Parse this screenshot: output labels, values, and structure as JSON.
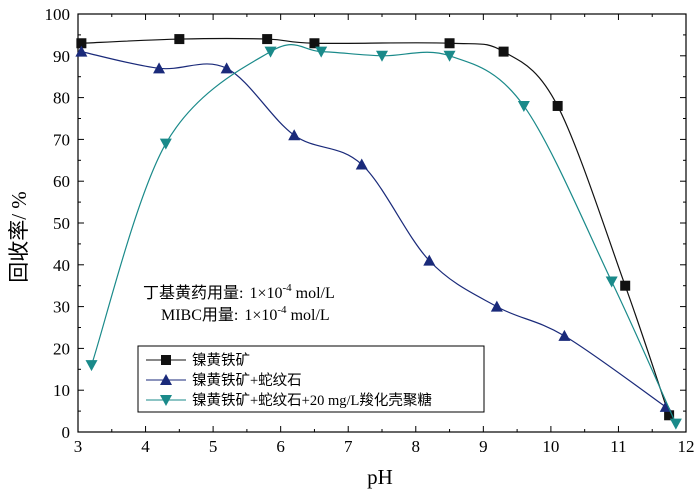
{
  "chart_data": {
    "type": "line",
    "xlabel": "pH",
    "ylabel": "回收率/ %",
    "xlim": [
      3,
      12
    ],
    "ylim": [
      0,
      100
    ],
    "x_ticks": [
      3,
      4,
      5,
      6,
      7,
      8,
      9,
      10,
      11,
      12
    ],
    "y_ticks": [
      0,
      10,
      20,
      30,
      40,
      50,
      60,
      70,
      80,
      90,
      100
    ],
    "grid": false,
    "legend_position": "bottom-left",
    "series": [
      {
        "name": "镍黄铁矿",
        "marker": "square",
        "color": "#111111",
        "x": [
          3.05,
          4.5,
          5.8,
          6.5,
          8.5,
          9.3,
          10.1,
          11.1,
          11.75
        ],
        "values": [
          93,
          94,
          94,
          93,
          93,
          91,
          78,
          35,
          4
        ]
      },
      {
        "name": "镍黄铁矿+蛇纹石",
        "marker": "triangle-up",
        "color": "#1a2a7a",
        "x": [
          3.05,
          4.2,
          5.2,
          6.2,
          7.2,
          8.2,
          9.2,
          10.2,
          11.7
        ],
        "values": [
          91,
          87,
          87,
          71,
          64,
          41,
          30,
          23,
          6
        ]
      },
      {
        "name": "镍黄铁矿+蛇纹石+20 mg/L羧化壳聚糖",
        "marker": "triangle-down",
        "color": "#1a8a8a",
        "x": [
          3.2,
          4.3,
          5.85,
          6.6,
          7.5,
          8.5,
          9.6,
          10.9,
          11.85
        ],
        "values": [
          16,
          69,
          91,
          91,
          90,
          90,
          78,
          36,
          2
        ]
      }
    ],
    "annotations": [
      {
        "label": "丁基黄药用量:",
        "value": "1×10",
        "exponent": "-4",
        "unit": " mol/L"
      },
      {
        "label": "MIBC用量:",
        "value": "1×10",
        "exponent": "-4",
        "unit": " mol/L"
      }
    ]
  }
}
